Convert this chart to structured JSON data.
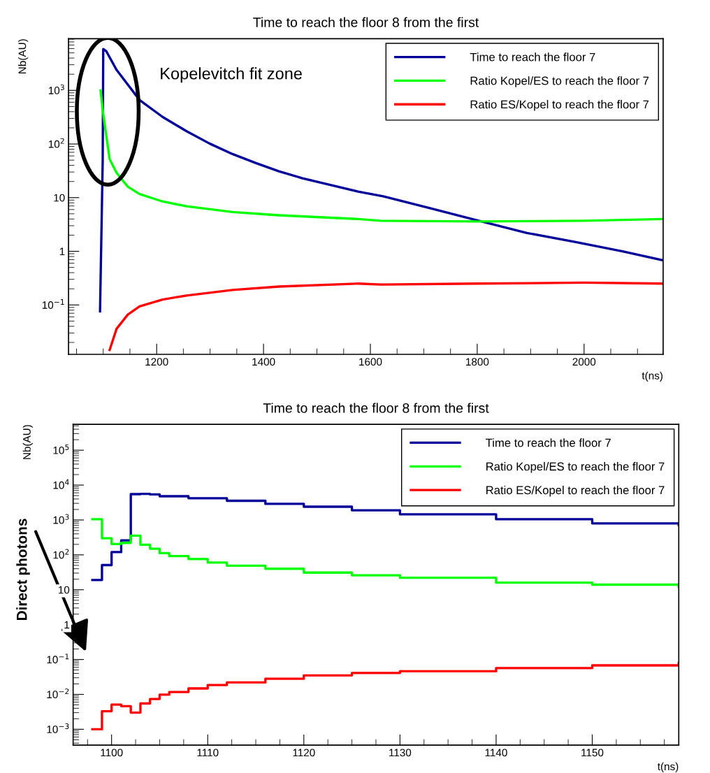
{
  "chart_data": [
    {
      "type": "line",
      "title": "Time to reach the floor 8 from the first",
      "xlabel": "t(ns)",
      "ylabel": "Nb(AU)",
      "log": true,
      "legend": "top right",
      "xlim": [
        1035,
        2148
      ],
      "xticks": [
        1200,
        1400,
        1600,
        1800,
        2000
      ],
      "ylim": [
        0.012,
        9200
      ],
      "yticks": [
        {
          "value": 0.1,
          "label": "10$^{−1}$"
        },
        1,
        10,
        {
          "value": 100,
          "label": "10$^{2}$"
        },
        {
          "value": 1000,
          "label": "10$^{3}$"
        }
      ],
      "annotations": [
        "Kopelevitch fit zone"
      ],
      "series": [
        {
          "name": "Time to reach the floor 7",
          "color": "#000099",
          "x": [
            1094,
            1099,
            1100,
            1105.5,
            1125,
            1168,
            1211,
            1256,
            1299,
            1342,
            1386,
            1429,
            1473,
            1517,
            1577,
            1624,
            1713,
            1803,
            1893,
            1983,
            2072,
            2148
          ],
          "values": [
            0.076,
            48,
            5900,
            5400,
            2400,
            660,
            320,
            173,
            102,
            65,
            44,
            31,
            23,
            18,
            13,
            10.6,
            6.3,
            3.7,
            2.2,
            1.5,
            1.0,
            0.68
          ]
        },
        {
          "name": "Ratio Kopel/ES to reach the floor 7",
          "color": "#00ff00",
          "x": [
            1095,
            1100,
            1112,
            1125,
            1146,
            1168,
            1211,
            1256,
            1342,
            1429,
            1577,
            1620,
            1800,
            2000,
            2148
          ],
          "values": [
            1000,
            360,
            52,
            29,
            16,
            11.7,
            8.5,
            6.9,
            5.4,
            4.7,
            4.0,
            3.7,
            3.6,
            3.7,
            4.0
          ]
        },
        {
          "name": "Ratio ES/Kopel to reach the floor 7",
          "color": "#ff0000",
          "x": [
            1112,
            1125,
            1146,
            1168,
            1211,
            1256,
            1342,
            1429,
            1577,
            1620,
            1800,
            2000,
            2148
          ],
          "values": [
            0.0145,
            0.036,
            0.066,
            0.094,
            0.126,
            0.15,
            0.19,
            0.22,
            0.25,
            0.24,
            0.25,
            0.26,
            0.25
          ]
        }
      ]
    },
    {
      "type": "step",
      "title": "Time to reach the floor 8 from the first",
      "xlabel": "t(ns)",
      "ylabel": "Nb(AU)",
      "log": true,
      "legend": "top right",
      "xlim": [
        1096,
        1159
      ],
      "xticks": [
        1100,
        1110,
        1120,
        1130,
        1140,
        1150
      ],
      "ylim": [
        0.00035,
        550000
      ],
      "yticks": [
        {
          "value": 0.001,
          "label": "10$^{−3}$"
        },
        {
          "value": 0.01,
          "label": "10$^{−2}$"
        },
        {
          "value": 0.1,
          "label": "10$^{−1}$"
        },
        1,
        10,
        {
          "value": 100,
          "label": "10$^{2}$"
        },
        {
          "value": 1000,
          "label": "10$^{3}$"
        },
        {
          "value": 10000,
          "label": "10$^{4}$"
        },
        {
          "value": 100000,
          "label": "10$^{5}$"
        }
      ],
      "annotations": [
        "Direct photons"
      ],
      "series": [
        {
          "name": "Time to reach the floor 7",
          "color": "#000099",
          "x": [
            1098,
            1099,
            1100,
            1101,
            1102,
            1103,
            1104,
            1105,
            1108,
            1112,
            1116,
            1120,
            1125,
            1130,
            1140,
            1150,
            1159
          ],
          "values": [
            19,
            51,
            120,
            260,
            5500,
            5600,
            5400,
            4800,
            4200,
            3550,
            2900,
            2400,
            1900,
            1450,
            1050,
            800,
            710
          ]
        },
        {
          "name": "Ratio Kopel/ES to reach the floor 7",
          "color": "#00ff00",
          "x": [
            1098,
            1099,
            1100,
            1101,
            1102,
            1103,
            1104,
            1105,
            1106,
            1108,
            1110,
            1112,
            1116,
            1120,
            1125,
            1130,
            1140,
            1150,
            1159
          ],
          "values": [
            1050,
            300,
            205,
            220,
            355,
            195,
            150,
            112,
            92,
            76,
            60,
            49,
            40,
            31,
            26,
            22,
            16,
            14,
            12
          ]
        },
        {
          "name": "Ratio ES/Kopel to reach the floor 7",
          "color": "#ff0000",
          "x": [
            1098,
            1099,
            1100,
            1101,
            1102,
            1103,
            1104,
            1105,
            1106,
            1108,
            1110,
            1112,
            1116,
            1120,
            1125,
            1130,
            1140,
            1150,
            1159
          ],
          "values": [
            0.001,
            0.0033,
            0.0051,
            0.0046,
            0.003,
            0.0055,
            0.0074,
            0.0098,
            0.0117,
            0.0148,
            0.0186,
            0.022,
            0.028,
            0.035,
            0.041,
            0.046,
            0.057,
            0.068,
            0.079
          ]
        }
      ]
    }
  ]
}
